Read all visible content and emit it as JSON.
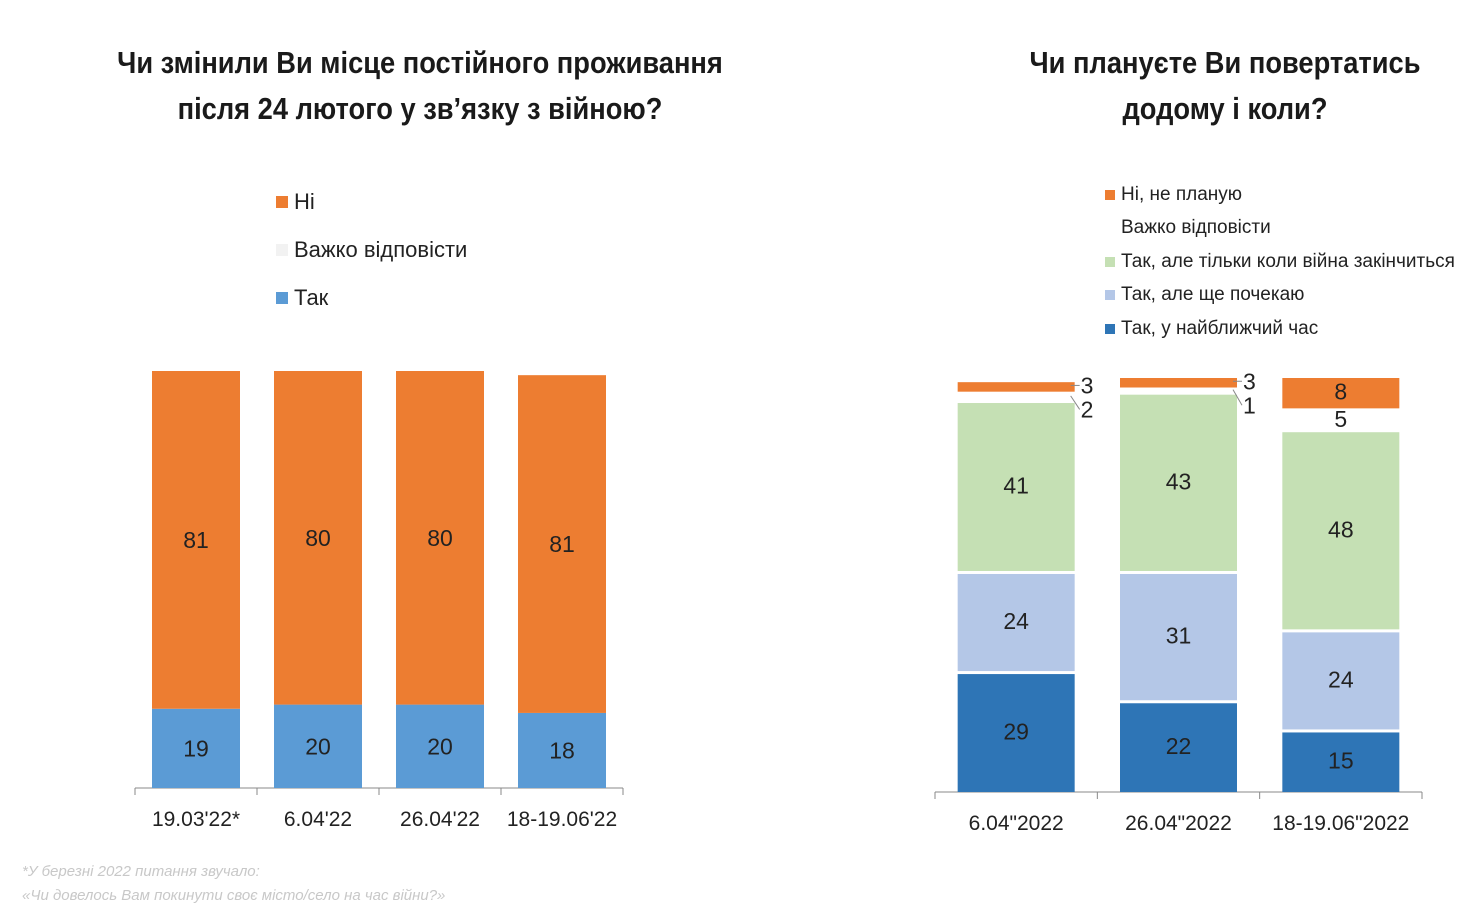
{
  "chart_data": [
    {
      "type": "bar",
      "stacked": true,
      "title": "Чи змінили Ви місце постійного проживання після  24 лютого у зв’язку з війною?",
      "title_lines": [
        "Чи змінили Ви місце постійного проживання",
        "після  24 лютого у зв’язку з війною?"
      ],
      "categories": [
        "19.03'22*",
        "6.04'22",
        "26.04'22",
        "18-19.06'22"
      ],
      "series": [
        {
          "name": "Так",
          "color": "#5b9bd5",
          "values": [
            19,
            20,
            20,
            18
          ]
        },
        {
          "name": "Важко відповісти",
          "color": "#f2f2f2",
          "values": [
            0,
            0,
            0,
            0
          ]
        },
        {
          "name": "Ні",
          "color": "#ed7d31",
          "values": [
            81,
            80,
            80,
            81
          ]
        }
      ],
      "legend_order": [
        "Ні",
        "Важко відповісти",
        "Так"
      ],
      "ylim": [
        0,
        100
      ],
      "grid": false,
      "legend": "top"
    },
    {
      "type": "bar",
      "stacked": true,
      "title": "Чи плануєте Ви повертатись додому і коли?",
      "title_lines": [
        "Чи плануєте Ви повертатись",
        "додому і коли?"
      ],
      "categories": [
        "6.04\"2022",
        "26.04\"2022",
        "18-19.06\"2022"
      ],
      "series": [
        {
          "name": "Так, у найближчий час",
          "color": "#2e75b6",
          "values": [
            29,
            22,
            15
          ]
        },
        {
          "name": "Так, але ще почекаю",
          "color": "#b4c7e7",
          "values": [
            24,
            31,
            24
          ]
        },
        {
          "name": "Так, але тільки коли війна закінчиться",
          "color": "#c5e0b4",
          "values": [
            41,
            43,
            48
          ]
        },
        {
          "name": "Важко відповісти",
          "color": "#ffffff",
          "values": [
            2,
            1,
            5
          ]
        },
        {
          "name": "Ні, не планую",
          "color": "#ed7d31",
          "values": [
            3,
            3,
            8
          ]
        }
      ],
      "legend_order": [
        "Ні, не планую",
        "Важко відповісти",
        "Так, але тільки коли війна закінчиться",
        "Так, але ще почекаю",
        "Так, у найближчий час"
      ],
      "ylim": [
        0,
        100
      ],
      "grid": false,
      "legend": "top"
    }
  ],
  "footnote": [
    "*У березні 2022 питання звучало:",
    "«Чи довелось Вам покинути своє місто/село на час війни?»"
  ]
}
